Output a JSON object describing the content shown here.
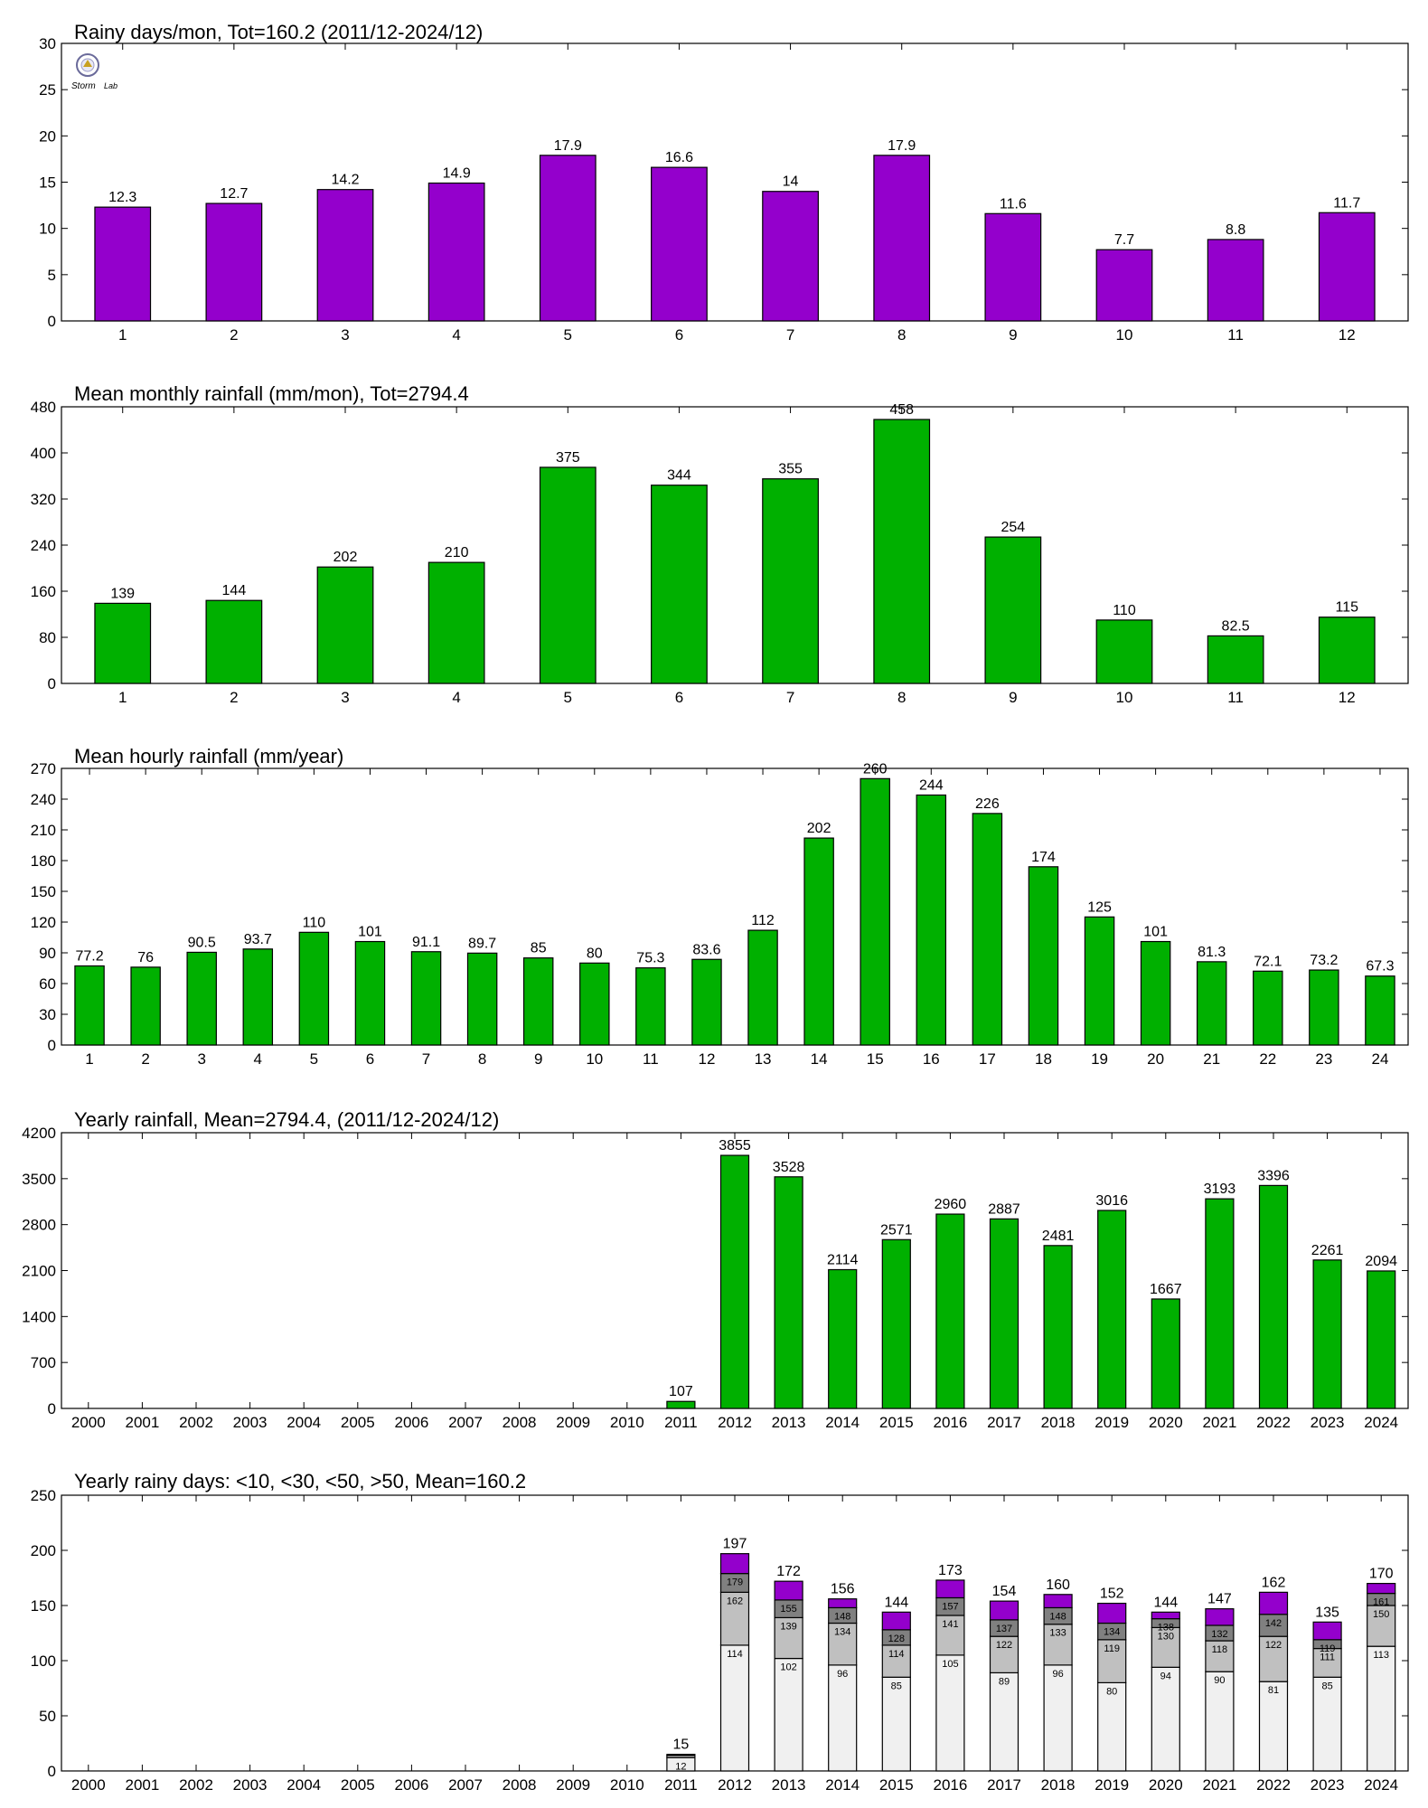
{
  "logo": {
    "text_line1": "Storm",
    "text_line2": "Lab"
  },
  "chart_data": [
    {
      "type": "bar",
      "title": "Rainy days/mon, Tot=160.2 (2011/12-2024/12)",
      "categories": [
        "1",
        "2",
        "3",
        "4",
        "5",
        "6",
        "7",
        "8",
        "9",
        "10",
        "11",
        "12"
      ],
      "values": [
        12.3,
        12.7,
        14.2,
        14.9,
        17.9,
        16.6,
        14,
        17.9,
        11.6,
        7.7,
        8.8,
        11.7
      ],
      "labels": [
        "12.3",
        "12.7",
        "14.2",
        "14.9",
        "17.9",
        "16.6",
        "14",
        "17.9",
        "11.6",
        "7.7",
        "8.8",
        "11.7"
      ],
      "ylim": [
        0,
        30
      ],
      "yticks": [
        0,
        5,
        10,
        15,
        20,
        25,
        30
      ],
      "color": "#9400cc",
      "grid": false
    },
    {
      "type": "bar",
      "title": "Mean monthly rainfall (mm/mon), Tot=2794.4",
      "categories": [
        "1",
        "2",
        "3",
        "4",
        "5",
        "6",
        "7",
        "8",
        "9",
        "10",
        "11",
        "12"
      ],
      "values": [
        139,
        144,
        202,
        210,
        375,
        344,
        355,
        458,
        254,
        110,
        82.5,
        115
      ],
      "labels": [
        "139",
        "144",
        "202",
        "210",
        "375",
        "344",
        "355",
        "458",
        "254",
        "110",
        "82.5",
        "115"
      ],
      "ylim": [
        0,
        480
      ],
      "yticks": [
        0,
        80,
        160,
        240,
        320,
        400,
        480
      ],
      "color": "#00b000",
      "grid": false
    },
    {
      "type": "bar",
      "title": "Mean hourly rainfall (mm/year)",
      "categories": [
        "1",
        "2",
        "3",
        "4",
        "5",
        "6",
        "7",
        "8",
        "9",
        "10",
        "11",
        "12",
        "13",
        "14",
        "15",
        "16",
        "17",
        "18",
        "19",
        "20",
        "21",
        "22",
        "23",
        "24"
      ],
      "values": [
        77.2,
        76,
        90.5,
        93.7,
        110,
        101,
        91.1,
        89.7,
        85,
        80,
        75.3,
        83.6,
        112,
        202,
        260,
        244,
        226,
        174,
        125,
        101,
        81.3,
        72.1,
        73.2,
        67.3
      ],
      "labels": [
        "77.2",
        "76",
        "90.5",
        "93.7",
        "110",
        "101",
        "91.1",
        "89.7",
        "85",
        "80",
        "75.3",
        "83.6",
        "112",
        "202",
        "260",
        "244",
        "226",
        "174",
        "125",
        "101",
        "81.3",
        "72.1",
        "73.2",
        "67.3"
      ],
      "ylim": [
        0,
        270
      ],
      "yticks": [
        0,
        30,
        60,
        90,
        120,
        150,
        180,
        210,
        240,
        270
      ],
      "color": "#00b000",
      "grid": false
    },
    {
      "type": "bar",
      "title": "Yearly rainfall, Mean=2794.4, (2011/12-2024/12)",
      "categories": [
        "2000",
        "2001",
        "2002",
        "2003",
        "2004",
        "2005",
        "2006",
        "2007",
        "2008",
        "2009",
        "2010",
        "2011",
        "2012",
        "2013",
        "2014",
        "2015",
        "2016",
        "2017",
        "2018",
        "2019",
        "2020",
        "2021",
        "2022",
        "2023",
        "2024"
      ],
      "values": [
        null,
        null,
        null,
        null,
        null,
        null,
        null,
        null,
        null,
        null,
        null,
        107,
        3855,
        3528,
        2114,
        2571,
        2960,
        2887,
        2481,
        3016,
        1667,
        3193,
        3396,
        2261,
        2094
      ],
      "labels": [
        "",
        "",
        "",
        "",
        "",
        "",
        "",
        "",
        "",
        "",
        "",
        "107",
        "3855",
        "3528",
        "2114",
        "2571",
        "2960",
        "2887",
        "2481",
        "3016",
        "1667",
        "3193",
        "3396",
        "2261",
        "2094"
      ],
      "ylim": [
        0,
        4200
      ],
      "yticks": [
        0,
        700,
        1400,
        2100,
        2800,
        3500,
        4200
      ],
      "color": "#00b000",
      "grid": false
    },
    {
      "type": "bar",
      "stacked": true,
      "title": "Yearly rainy days: <10, <30, <50, >50, Mean=160.2",
      "categories": [
        "2000",
        "2001",
        "2002",
        "2003",
        "2004",
        "2005",
        "2006",
        "2007",
        "2008",
        "2009",
        "2010",
        "2011",
        "2012",
        "2013",
        "2014",
        "2015",
        "2016",
        "2017",
        "2018",
        "2019",
        "2020",
        "2021",
        "2022",
        "2023",
        "2024"
      ],
      "series": [
        {
          "name": "<10",
          "color": "#f0f0f0",
          "values": [
            null,
            null,
            null,
            null,
            null,
            null,
            null,
            null,
            null,
            null,
            null,
            12,
            114,
            102,
            96,
            85,
            105,
            89,
            96,
            80,
            94,
            90,
            81,
            85,
            113
          ]
        },
        {
          "name": "<30",
          "color": "#c0c0c0",
          "values": [
            null,
            null,
            null,
            null,
            null,
            null,
            null,
            null,
            null,
            null,
            null,
            2,
            48,
            37,
            38,
            29,
            36,
            33,
            37,
            39,
            36,
            28,
            41,
            26,
            37
          ]
        },
        {
          "name": "<50",
          "color": "#808080",
          "values": [
            null,
            null,
            null,
            null,
            null,
            null,
            null,
            null,
            null,
            null,
            null,
            1,
            17,
            16,
            14,
            14,
            16,
            15,
            15,
            15,
            8,
            14,
            20,
            8,
            11
          ]
        },
        {
          "name": ">50",
          "color": "#9400cc",
          "values": [
            null,
            null,
            null,
            null,
            null,
            null,
            null,
            null,
            null,
            null,
            null,
            0,
            18,
            17,
            8,
            16,
            16,
            17,
            12,
            18,
            6,
            15,
            20,
            16,
            9
          ]
        }
      ],
      "cumulative_labels": [
        [
          "",
          "",
          "",
          ""
        ],
        [
          "",
          "",
          "",
          ""
        ],
        [
          "",
          "",
          "",
          ""
        ],
        [
          "",
          "",
          "",
          ""
        ],
        [
          "",
          "",
          "",
          ""
        ],
        [
          "",
          "",
          "",
          ""
        ],
        [
          "",
          "",
          "",
          ""
        ],
        [
          "",
          "",
          "",
          ""
        ],
        [
          "",
          "",
          "",
          ""
        ],
        [
          "",
          "",
          "",
          ""
        ],
        [
          "",
          "",
          "",
          ""
        ],
        [
          "12",
          "",
          "",
          ""
        ],
        [
          "114",
          "162",
          "179",
          ""
        ],
        [
          "102",
          "139",
          "155",
          ""
        ],
        [
          "96",
          "134",
          "148",
          ""
        ],
        [
          "85",
          "114",
          "128",
          ""
        ],
        [
          "105",
          "141",
          "157",
          ""
        ],
        [
          "89",
          "122",
          "137",
          ""
        ],
        [
          "96",
          "133",
          "148",
          ""
        ],
        [
          "80",
          "119",
          "134",
          ""
        ],
        [
          "94",
          "130",
          "138",
          ""
        ],
        [
          "90",
          "118",
          "132",
          ""
        ],
        [
          "81",
          "122",
          "142",
          ""
        ],
        [
          "85",
          "111",
          "119",
          ""
        ],
        [
          "113",
          "150",
          "161",
          ""
        ]
      ],
      "totals": [
        null,
        null,
        null,
        null,
        null,
        null,
        null,
        null,
        null,
        null,
        null,
        15,
        197,
        172,
        156,
        144,
        173,
        154,
        160,
        152,
        144,
        147,
        162,
        135,
        170
      ],
      "total_labels": [
        "",
        "",
        "",
        "",
        "",
        "",
        "",
        "",
        "",
        "",
        "",
        "15",
        "197",
        "172",
        "156",
        "144",
        "173",
        "154",
        "160",
        "152",
        "144",
        "147",
        "162",
        "135",
        "170"
      ],
      "ylim": [
        0,
        250
      ],
      "yticks": [
        0,
        50,
        100,
        150,
        200,
        250
      ],
      "grid": false
    }
  ]
}
